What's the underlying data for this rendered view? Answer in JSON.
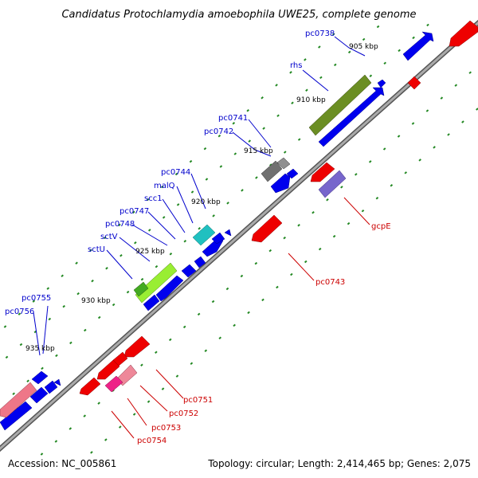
{
  "title": "Candidatus Protochlamydia amoebophila UWE25, complete genome",
  "footer": {
    "accession": "Accession: NC_005861",
    "summary": "Topology: circular; Length: 2,414,465 bp; Genes: 2,075"
  },
  "ticks": [
    {
      "label": "905 kbp"
    },
    {
      "label": "910 kbp"
    },
    {
      "label": "915 kbp"
    },
    {
      "label": "920 kbp"
    },
    {
      "label": "925 kbp"
    },
    {
      "label": "930 kbp"
    },
    {
      "label": "935 kbp"
    }
  ],
  "labels_forward": [
    {
      "text": "pc0738"
    },
    {
      "text": "rhs"
    },
    {
      "text": "pc0741"
    },
    {
      "text": "pc0742"
    },
    {
      "text": "pc0744"
    },
    {
      "text": "malQ"
    },
    {
      "text": "scc1"
    },
    {
      "text": "pc0747"
    },
    {
      "text": "pc0748"
    },
    {
      "text": "sctV"
    },
    {
      "text": "sctU"
    },
    {
      "text": "pc0755"
    },
    {
      "text": "pc0756"
    }
  ],
  "labels_reverse": [
    {
      "text": "gcpE"
    },
    {
      "text": "pc0743"
    },
    {
      "text": "pc0751"
    },
    {
      "text": "pc0752"
    },
    {
      "text": "pc0753"
    },
    {
      "text": "pc0754"
    }
  ],
  "colors": {
    "forward_gene": "#0000ee",
    "reverse_gene": "#ee0000",
    "label_forward": "#0000cc",
    "label_reverse": "#cc0000",
    "backbone": "#888888",
    "tick_dots": "#228822",
    "rhs_feature": "#6b8e23",
    "grey_feature": "#707070",
    "cyan_feature": "#20c0c0",
    "lime_feature": "#99ee33",
    "purple_feature": "#7766cc",
    "pink_feature": "#ee7788",
    "magenta_feature": "#ee2288"
  }
}
